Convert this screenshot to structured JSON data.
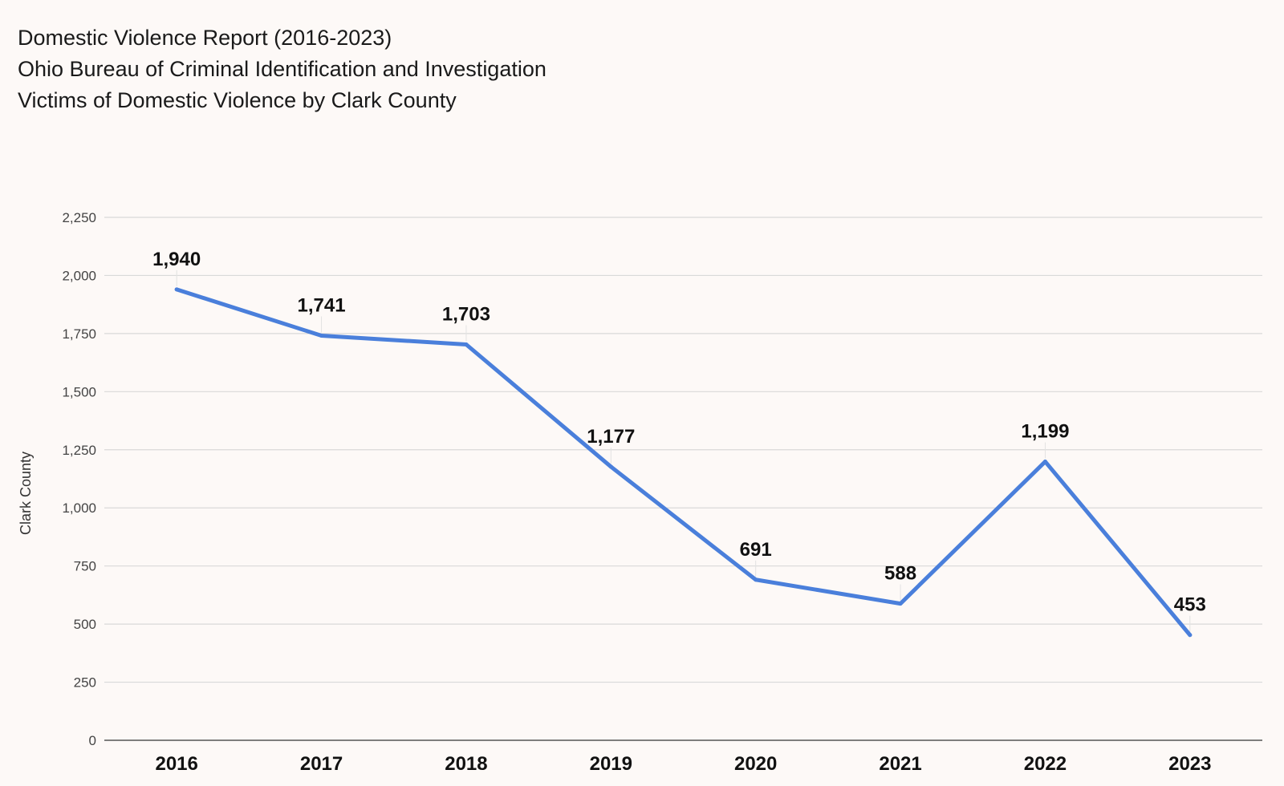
{
  "title_lines": [
    "Domestic Violence Report (2016-2023)",
    "Ohio Bureau of Criminal Identification and Investigation",
    "Victims of Domestic Violence by Clark County"
  ],
  "colors": {
    "series": "#4a7fdb",
    "background": "#fdf9f7"
  },
  "chart_data": {
    "type": "line",
    "title": "Domestic Violence Report (2016-2023) Ohio Bureau of Criminal Identification and Investigation Victims of Domestic Violence by Clark County",
    "xlabel": "",
    "ylabel": "Clark County",
    "categories": [
      "2016",
      "2017",
      "2018",
      "2019",
      "2020",
      "2021",
      "2022",
      "2023"
    ],
    "series": [
      {
        "name": "Clark County",
        "values": [
          1940,
          1741,
          1703,
          1177,
          691,
          588,
          1199,
          453
        ],
        "labels": [
          "1,940",
          "1,741",
          "1,703",
          "1,177",
          "691",
          "588",
          "1,199",
          "453"
        ]
      }
    ],
    "ylim": [
      0,
      2250
    ],
    "yticks": [
      0,
      250,
      500,
      750,
      1000,
      1250,
      1500,
      1750,
      2000,
      2250
    ],
    "ytick_labels": [
      "0",
      "250",
      "500",
      "750",
      "1,000",
      "1,250",
      "1,500",
      "1,750",
      "2,000",
      "2,250"
    ],
    "grid": true,
    "legend": "none"
  }
}
